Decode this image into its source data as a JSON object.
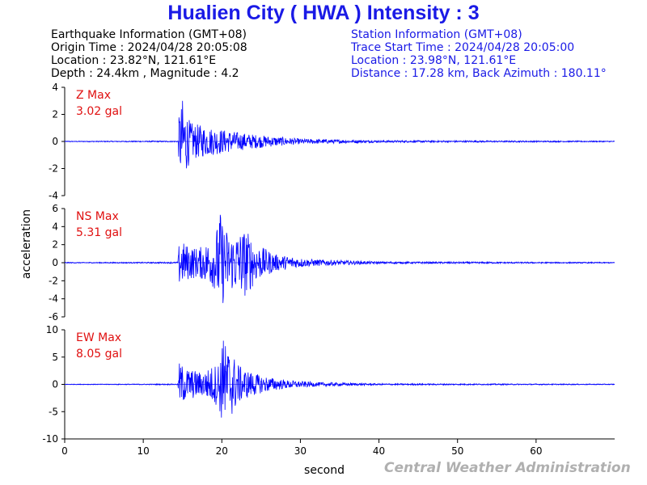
{
  "title": "Hualien City ( HWA ) Intensity : 3",
  "earthquake": {
    "heading": "Earthquake Information  (GMT+08)",
    "origin_time": "Origin Time : 2024/04/28 20:05:08",
    "location": "Location : 23.82°N, 121.61°E",
    "depth_mag": "Depth : 24.4km , Magnitude : 4.2"
  },
  "station": {
    "heading": "Station Information  (GMT+08)",
    "trace_start": "Trace Start Time : 2024/04/28 20:05:00",
    "location": "Location : 23.98°N, 121.61°E",
    "distance": "Distance : 17.28 km, Back Azimuth : 180.11°"
  },
  "footer": "Central Weather Administration",
  "colors": {
    "trace": "#0000ff",
    "label": "#e01010",
    "title": "#1a1ae6"
  },
  "chart_data": {
    "type": "line",
    "xlabel": "second",
    "ylabel": "acceleration",
    "xlim": [
      0,
      70
    ],
    "xticks": [
      0,
      10,
      20,
      30,
      40,
      50,
      60
    ],
    "panels": [
      {
        "name": "Z",
        "max_label": "Z Max",
        "max_value": "3.02 gal",
        "ylim": [
          -4,
          4
        ],
        "yticks": [
          -4,
          -2,
          0,
          2,
          4
        ],
        "envelope": [
          {
            "t": 0,
            "a": 0.03
          },
          {
            "t": 14.4,
            "a": 0.05
          },
          {
            "t": 14.6,
            "a": 2.4
          },
          {
            "t": 15.0,
            "a": 3.0
          },
          {
            "t": 16.0,
            "a": 1.4
          },
          {
            "t": 18.0,
            "a": 1.1
          },
          {
            "t": 20.0,
            "a": 0.9
          },
          {
            "t": 23.0,
            "a": 0.6
          },
          {
            "t": 26.0,
            "a": 0.4
          },
          {
            "t": 30.0,
            "a": 0.2
          },
          {
            "t": 40.0,
            "a": 0.08
          },
          {
            "t": 70.0,
            "a": 0.04
          }
        ]
      },
      {
        "name": "NS",
        "max_label": "NS Max",
        "max_value": "5.31 gal",
        "ylim": [
          -6,
          6
        ],
        "yticks": [
          -6,
          -4,
          -2,
          0,
          2,
          4,
          6
        ],
        "envelope": [
          {
            "t": 0,
            "a": 0.05
          },
          {
            "t": 14.4,
            "a": 0.08
          },
          {
            "t": 14.6,
            "a": 2.6
          },
          {
            "t": 15.5,
            "a": 2.0
          },
          {
            "t": 17.0,
            "a": 1.6
          },
          {
            "t": 19.0,
            "a": 2.8
          },
          {
            "t": 19.8,
            "a": 5.3
          },
          {
            "t": 21.0,
            "a": 3.0
          },
          {
            "t": 23.0,
            "a": 3.8
          },
          {
            "t": 24.5,
            "a": 2.0
          },
          {
            "t": 27.0,
            "a": 0.9
          },
          {
            "t": 31.0,
            "a": 0.4
          },
          {
            "t": 40.0,
            "a": 0.12
          },
          {
            "t": 70.0,
            "a": 0.06
          }
        ]
      },
      {
        "name": "EW",
        "max_label": "EW Max",
        "max_value": "8.05 gal",
        "ylim": [
          -10,
          10
        ],
        "yticks": [
          -10,
          -5,
          0,
          5,
          10
        ],
        "envelope": [
          {
            "t": 0,
            "a": 0.06
          },
          {
            "t": 14.4,
            "a": 0.1
          },
          {
            "t": 14.6,
            "a": 4.0
          },
          {
            "t": 15.5,
            "a": 3.0
          },
          {
            "t": 17.5,
            "a": 2.2
          },
          {
            "t": 19.5,
            "a": 4.0
          },
          {
            "t": 20.2,
            "a": 8.0
          },
          {
            "t": 21.0,
            "a": 6.5
          },
          {
            "t": 22.5,
            "a": 3.0
          },
          {
            "t": 25.0,
            "a": 1.6
          },
          {
            "t": 28.0,
            "a": 0.8
          },
          {
            "t": 32.0,
            "a": 0.4
          },
          {
            "t": 40.0,
            "a": 0.15
          },
          {
            "t": 70.0,
            "a": 0.08
          }
        ]
      }
    ]
  }
}
